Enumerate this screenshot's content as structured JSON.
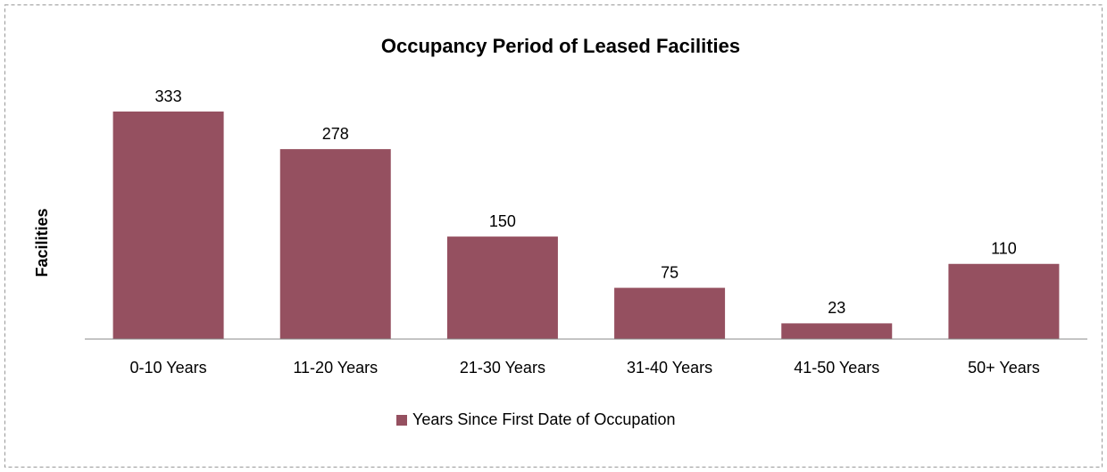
{
  "chart_data": {
    "type": "bar",
    "title": "Occupancy Period of Leased Facilities",
    "y_label": "Facilities",
    "categories": [
      "0-10 Years",
      "11-20 Years",
      "21-30 Years",
      "31-40 Years",
      "41-50 Years",
      "50+ Years"
    ],
    "series": [
      {
        "name": "Years Since First Date of Occupation",
        "color": "#955060",
        "values": [
          333,
          278,
          150,
          75,
          23,
          110
        ]
      }
    ],
    "ylim": [
      0,
      350
    ],
    "legend": "bottom"
  }
}
